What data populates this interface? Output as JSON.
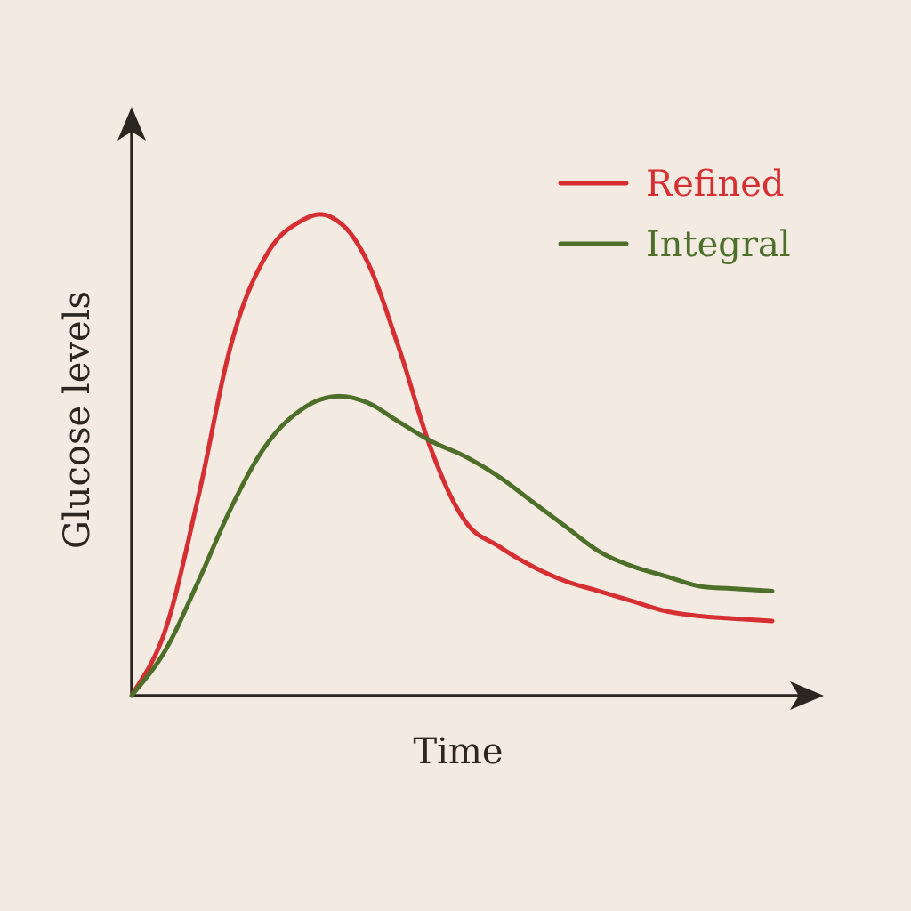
{
  "chart_data": {
    "type": "line",
    "title": "",
    "xlabel": "Time",
    "ylabel": "Glucose levels",
    "xlim": [
      0,
      10
    ],
    "ylim": [
      0,
      10
    ],
    "grid": false,
    "legend_position": "top-right",
    "series": [
      {
        "name": "Refined",
        "color": "#d62f33",
        "x": [
          0,
          0.5,
          1.0,
          1.5,
          2.0,
          2.5,
          3.0,
          3.5,
          4.0,
          4.5,
          5.0,
          5.5,
          6.0,
          6.5,
          7.0,
          7.5,
          8.0,
          8.5,
          9.0,
          9.6
        ],
        "values": [
          0,
          1.3,
          4.0,
          7.1,
          8.8,
          9.5,
          9.6,
          8.8,
          7.0,
          4.9,
          3.5,
          3.0,
          2.6,
          2.3,
          2.1,
          1.9,
          1.7,
          1.6,
          1.55,
          1.5
        ]
      },
      {
        "name": "Integral",
        "color": "#4d6f2a",
        "x": [
          0,
          0.5,
          1.0,
          1.5,
          2.0,
          2.5,
          3.0,
          3.5,
          4.0,
          4.5,
          5.0,
          5.5,
          6.0,
          6.5,
          7.0,
          7.5,
          8.0,
          8.5,
          9.0,
          9.6
        ],
        "values": [
          0,
          0.9,
          2.3,
          3.8,
          5.0,
          5.7,
          6.0,
          5.9,
          5.5,
          5.1,
          4.8,
          4.4,
          3.9,
          3.4,
          2.9,
          2.6,
          2.4,
          2.2,
          2.15,
          2.1
        ]
      }
    ]
  }
}
